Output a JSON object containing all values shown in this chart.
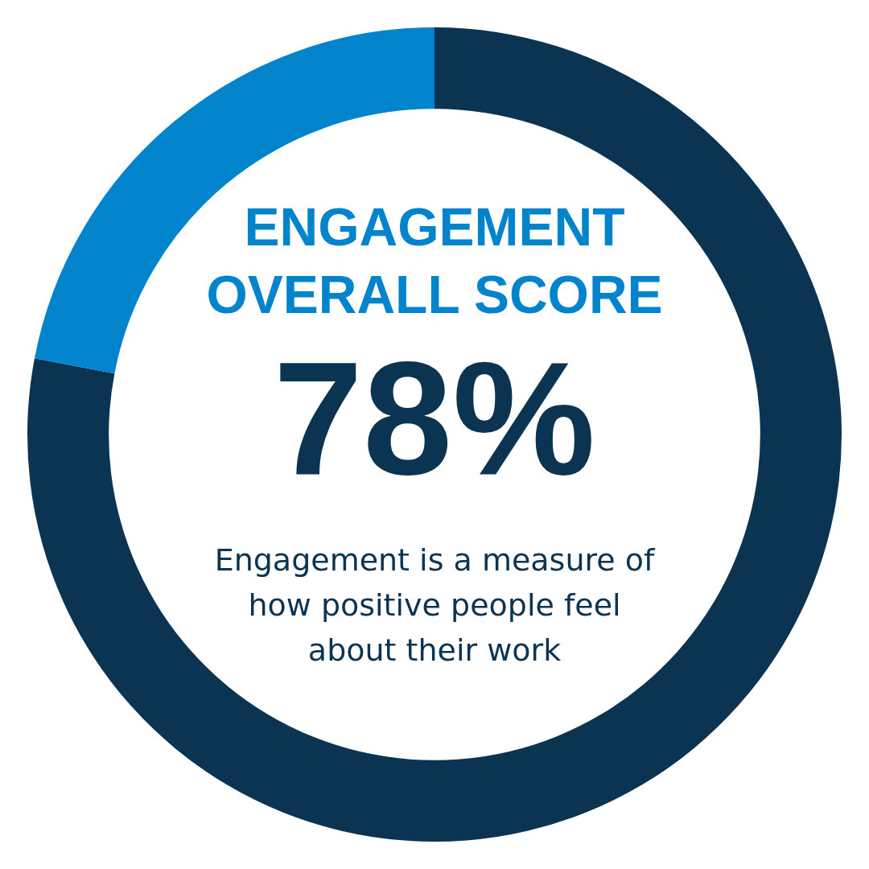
{
  "chart_data": {
    "type": "donut",
    "title": "ENGAGEMENT OVERALL SCORE",
    "categories": [
      null,
      null
    ],
    "values": [
      78,
      22
    ],
    "colors": [
      "#0a3452",
      "#0284cc"
    ],
    "value_labels": [
      "78%",
      null
    ],
    "annotations": [
      "Engagement is a measure of how positive people feel about their work"
    ]
  }
}
